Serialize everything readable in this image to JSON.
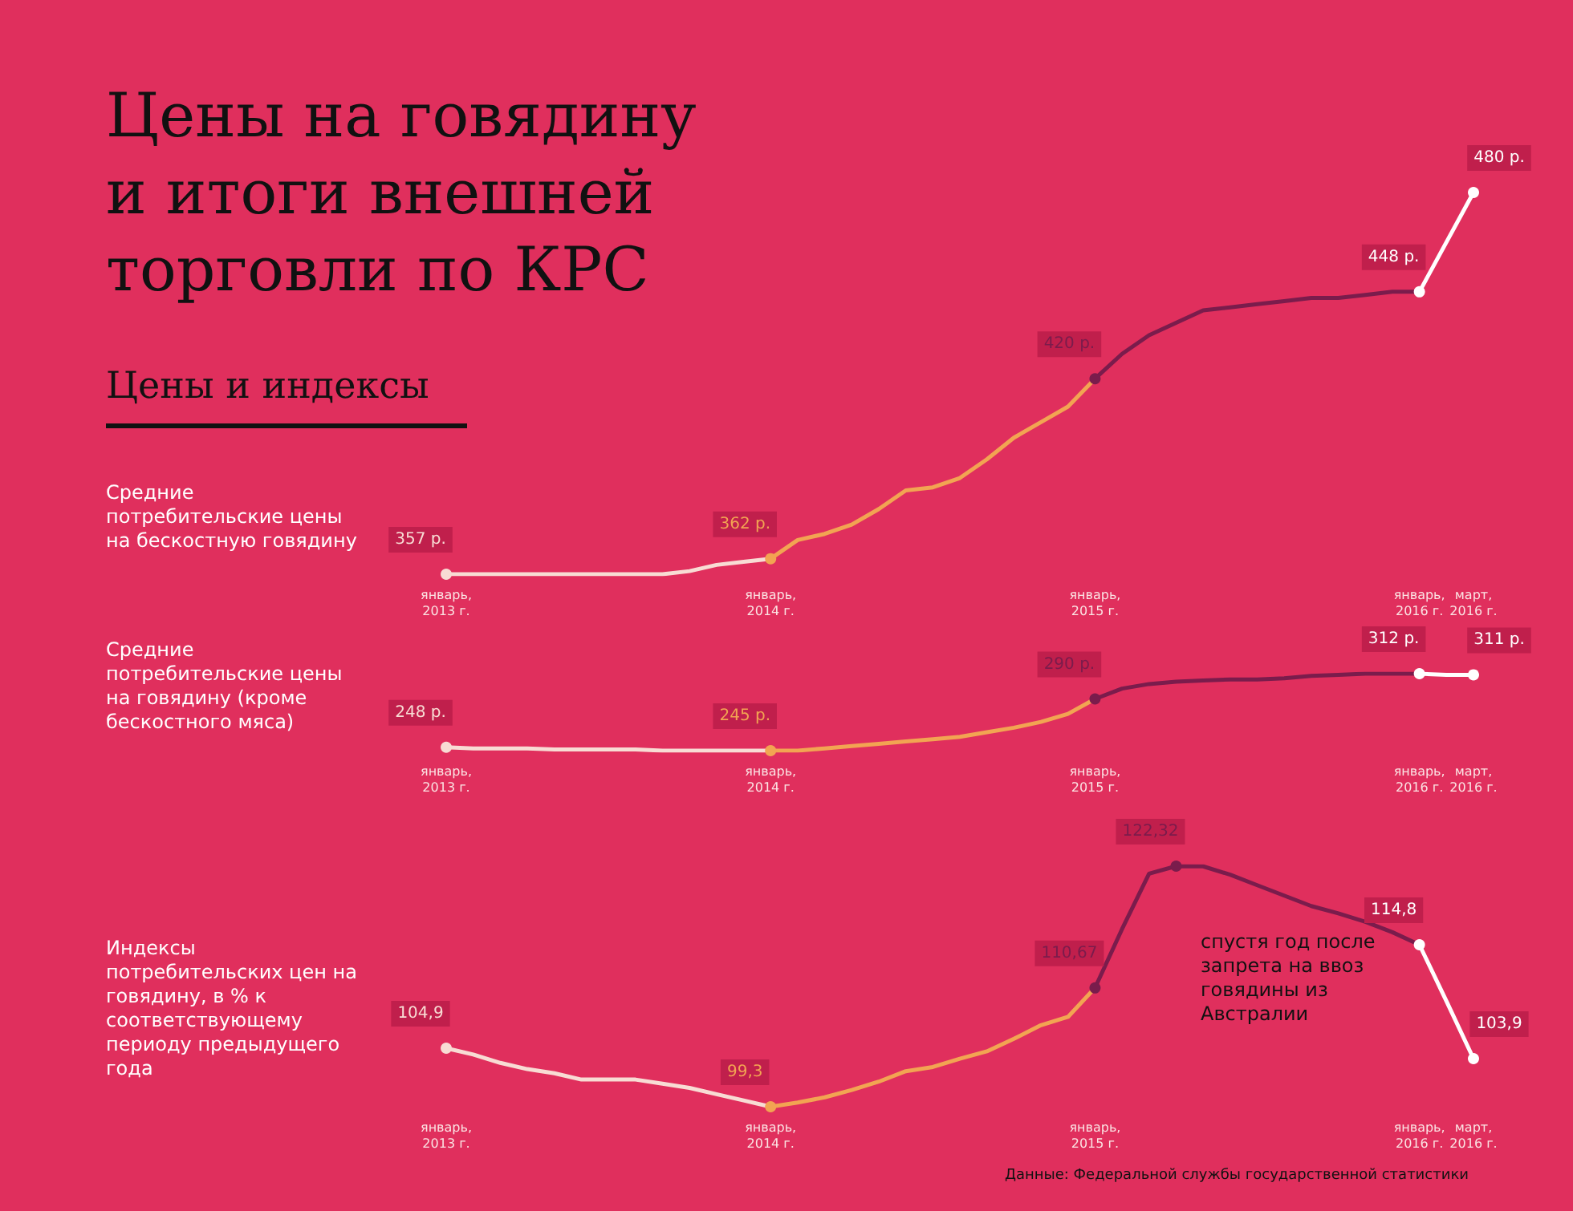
{
  "chart_data": [
    {
      "type": "line",
      "title": "Цены на говядину и итоги внешней торговли по КРС",
      "subtitle": "Цены и индексы",
      "ylabel": "Средние потребительские цены на бескостную говядину",
      "tick_labels": "x",
      "categories": [
        "январь, 2013 г.",
        null,
        null,
        null,
        null,
        null,
        null,
        null,
        null,
        null,
        null,
        null,
        "январь, 2014 г.",
        null,
        null,
        null,
        null,
        null,
        null,
        null,
        null,
        null,
        null,
        null,
        "январь, 2015 г.",
        null,
        null,
        null,
        null,
        null,
        null,
        null,
        null,
        null,
        null,
        null,
        "январь, 2016 г.",
        null,
        "март, 2016 г."
      ],
      "series": [
        {
          "color": "#f8dcd4",
          "values": [
            357,
            357,
            357,
            357,
            357,
            357,
            357,
            357,
            357,
            358,
            360,
            361,
            362,
            null,
            null,
            null,
            null,
            null,
            null,
            null,
            null,
            null,
            null,
            null,
            null,
            null,
            null,
            null,
            null,
            null,
            null,
            null,
            null,
            null,
            null,
            null,
            null,
            null,
            null
          ],
          "value_labels": [
            "357 р.",
            null,
            null,
            null,
            null,
            null,
            null,
            null,
            null,
            null,
            null,
            null,
            null,
            null,
            null,
            null,
            null,
            null,
            null,
            null,
            null,
            null,
            null,
            null,
            null,
            null,
            null,
            null,
            null,
            null,
            null,
            null,
            null,
            null,
            null,
            null,
            null,
            null,
            null
          ]
        },
        {
          "color": "#f2a452",
          "values": [
            null,
            null,
            null,
            null,
            null,
            null,
            null,
            null,
            null,
            null,
            null,
            null,
            362,
            368,
            370,
            373,
            378,
            384,
            385,
            388,
            394,
            401,
            406,
            411,
            420,
            null,
            null,
            null,
            null,
            null,
            null,
            null,
            null,
            null,
            null,
            null,
            null,
            null,
            null
          ],
          "value_labels": [
            null,
            null,
            null,
            null,
            null,
            null,
            null,
            null,
            null,
            null,
            null,
            null,
            "362 р.",
            null,
            null,
            null,
            null,
            null,
            null,
            null,
            null,
            null,
            null,
            null,
            null,
            null,
            null,
            null,
            null,
            null,
            null,
            null,
            null,
            null,
            null,
            null,
            null,
            null,
            null
          ]
        },
        {
          "color": "#7a1c4c",
          "values": [
            null,
            null,
            null,
            null,
            null,
            null,
            null,
            null,
            null,
            null,
            null,
            null,
            null,
            null,
            null,
            null,
            null,
            null,
            null,
            null,
            null,
            null,
            null,
            null,
            420,
            428,
            434,
            438,
            442,
            443,
            444,
            445,
            446,
            446,
            447,
            448,
            448,
            null,
            null
          ],
          "value_labels": [
            null,
            null,
            null,
            null,
            null,
            null,
            null,
            null,
            null,
            null,
            null,
            null,
            null,
            null,
            null,
            null,
            null,
            null,
            null,
            null,
            null,
            null,
            null,
            null,
            "420 р.",
            null,
            null,
            null,
            null,
            null,
            null,
            null,
            null,
            null,
            null,
            null,
            null,
            null,
            null
          ]
        },
        {
          "color": "#ffffff",
          "values": [
            null,
            null,
            null,
            null,
            null,
            null,
            null,
            null,
            null,
            null,
            null,
            null,
            null,
            null,
            null,
            null,
            null,
            null,
            null,
            null,
            null,
            null,
            null,
            null,
            null,
            null,
            null,
            null,
            null,
            null,
            null,
            null,
            null,
            null,
            null,
            null,
            448,
            464,
            480
          ],
          "value_labels": [
            null,
            null,
            null,
            null,
            null,
            null,
            null,
            null,
            null,
            null,
            null,
            null,
            null,
            null,
            null,
            null,
            null,
            null,
            null,
            null,
            null,
            null,
            null,
            null,
            null,
            null,
            null,
            null,
            null,
            null,
            null,
            null,
            null,
            null,
            null,
            null,
            "448 р.",
            null,
            "480 р."
          ]
        }
      ]
    },
    {
      "type": "line",
      "ylabel": "Средние потребительские цены на говядину (кроме бескостного мяса)",
      "tick_labels": "x",
      "categories": [
        "январь, 2013 г.",
        null,
        null,
        null,
        null,
        null,
        null,
        null,
        null,
        null,
        null,
        null,
        "январь, 2014 г.",
        null,
        null,
        null,
        null,
        null,
        null,
        null,
        null,
        null,
        null,
        null,
        "январь, 2015 г.",
        null,
        null,
        null,
        null,
        null,
        null,
        null,
        null,
        null,
        null,
        null,
        "январь, 2016 г.",
        null,
        "март, 2016 г."
      ],
      "series": [
        {
          "color": "#f8dcd4",
          "values": [
            248,
            247,
            247,
            247,
            246,
            246,
            246,
            246,
            245,
            245,
            245,
            245,
            245,
            null,
            null,
            null,
            null,
            null,
            null,
            null,
            null,
            null,
            null,
            null,
            null,
            null,
            null,
            null,
            null,
            null,
            null,
            null,
            null,
            null,
            null,
            null,
            null,
            null,
            null
          ],
          "value_labels": [
            "248 р.",
            null,
            null,
            null,
            null,
            null,
            null,
            null,
            null,
            null,
            null,
            null,
            null,
            null,
            null,
            null,
            null,
            null,
            null,
            null,
            null,
            null,
            null,
            null,
            null,
            null,
            null,
            null,
            null,
            null,
            null,
            null,
            null,
            null,
            null,
            null,
            null,
            null,
            null
          ]
        },
        {
          "color": "#f2a452",
          "values": [
            null,
            null,
            null,
            null,
            null,
            null,
            null,
            null,
            null,
            null,
            null,
            null,
            245,
            245,
            247,
            249,
            251,
            253,
            255,
            257,
            261,
            265,
            270,
            277,
            290,
            null,
            null,
            null,
            null,
            null,
            null,
            null,
            null,
            null,
            null,
            null,
            null,
            null,
            null
          ],
          "value_labels": [
            null,
            null,
            null,
            null,
            null,
            null,
            null,
            null,
            null,
            null,
            null,
            null,
            "245 р.",
            null,
            null,
            null,
            null,
            null,
            null,
            null,
            null,
            null,
            null,
            null,
            null,
            null,
            null,
            null,
            null,
            null,
            null,
            null,
            null,
            null,
            null,
            null,
            null,
            null,
            null
          ]
        },
        {
          "color": "#7a1c4c",
          "values": [
            null,
            null,
            null,
            null,
            null,
            null,
            null,
            null,
            null,
            null,
            null,
            null,
            null,
            null,
            null,
            null,
            null,
            null,
            null,
            null,
            null,
            null,
            null,
            null,
            290,
            299,
            303,
            305,
            306,
            307,
            307,
            308,
            310,
            311,
            312,
            312,
            312,
            null,
            null
          ],
          "value_labels": [
            null,
            null,
            null,
            null,
            null,
            null,
            null,
            null,
            null,
            null,
            null,
            null,
            null,
            null,
            null,
            null,
            null,
            null,
            null,
            null,
            null,
            null,
            null,
            null,
            "290 р.",
            null,
            null,
            null,
            null,
            null,
            null,
            null,
            null,
            null,
            null,
            null,
            null,
            null,
            null
          ]
        },
        {
          "color": "#ffffff",
          "values": [
            null,
            null,
            null,
            null,
            null,
            null,
            null,
            null,
            null,
            null,
            null,
            null,
            null,
            null,
            null,
            null,
            null,
            null,
            null,
            null,
            null,
            null,
            null,
            null,
            null,
            null,
            null,
            null,
            null,
            null,
            null,
            null,
            null,
            null,
            null,
            null,
            312,
            311,
            311
          ],
          "value_labels": [
            null,
            null,
            null,
            null,
            null,
            null,
            null,
            null,
            null,
            null,
            null,
            null,
            null,
            null,
            null,
            null,
            null,
            null,
            null,
            null,
            null,
            null,
            null,
            null,
            null,
            null,
            null,
            null,
            null,
            null,
            null,
            null,
            null,
            null,
            null,
            null,
            "312 р.",
            null,
            "311 р."
          ]
        }
      ]
    },
    {
      "type": "line",
      "ylabel": "Индексы потребительских цен на говядину, в % к соответствующему периоду предыдущего года",
      "tick_labels": "x",
      "annotations": [
        "спустя год после запрета на ввоз говядины из Австралии",
        "Данные: Федеральной службы государственной статистики"
      ],
      "categories": [
        "январь, 2013 г.",
        null,
        null,
        null,
        null,
        null,
        null,
        null,
        null,
        null,
        null,
        null,
        "январь, 2014 г.",
        null,
        null,
        null,
        null,
        null,
        null,
        null,
        null,
        null,
        null,
        null,
        "январь, 2015 г.",
        null,
        null,
        null,
        null,
        null,
        null,
        null,
        null,
        null,
        null,
        null,
        "январь, 2016 г.",
        null,
        "март, 2016 г."
      ],
      "series": [
        {
          "color": "#f8dcd4",
          "values": [
            104.9,
            104.3,
            103.5,
            102.9,
            102.5,
            101.9,
            101.9,
            101.9,
            101.5,
            101.1,
            100.5,
            99.9,
            99.3,
            null,
            null,
            null,
            null,
            null,
            null,
            null,
            null,
            null,
            null,
            null,
            null,
            null,
            null,
            null,
            null,
            null,
            null,
            null,
            null,
            null,
            null,
            null,
            null,
            null,
            null
          ],
          "value_labels": [
            "104,9",
            null,
            null,
            null,
            null,
            null,
            null,
            null,
            null,
            null,
            null,
            null,
            null,
            null,
            null,
            null,
            null,
            null,
            null,
            null,
            null,
            null,
            null,
            null,
            null,
            null,
            null,
            null,
            null,
            null,
            null,
            null,
            null,
            null,
            null,
            null,
            null,
            null,
            null
          ]
        },
        {
          "color": "#f2a452",
          "values": [
            null,
            null,
            null,
            null,
            null,
            null,
            null,
            null,
            null,
            null,
            null,
            null,
            99.3,
            99.7,
            100.2,
            100.9,
            101.7,
            102.7,
            103.1,
            103.9,
            104.6,
            105.8,
            107.1,
            107.9,
            110.67,
            null,
            null,
            null,
            null,
            null,
            null,
            null,
            null,
            null,
            null,
            null,
            null,
            null,
            null
          ],
          "value_labels": [
            null,
            null,
            null,
            null,
            null,
            null,
            null,
            null,
            null,
            null,
            null,
            null,
            "99,3",
            null,
            null,
            null,
            null,
            null,
            null,
            null,
            null,
            null,
            null,
            null,
            null,
            null,
            null,
            null,
            null,
            null,
            null,
            null,
            null,
            null,
            null,
            null,
            null,
            null,
            null
          ]
        },
        {
          "color": "#7a1c4c",
          "values": [
            null,
            null,
            null,
            null,
            null,
            null,
            null,
            null,
            null,
            null,
            null,
            null,
            null,
            null,
            null,
            null,
            null,
            null,
            null,
            null,
            null,
            null,
            null,
            null,
            110.67,
            116.3,
            121.6,
            122.32,
            122.3,
            121.5,
            120.5,
            119.5,
            118.5,
            117.8,
            117,
            116,
            114.8,
            null,
            null
          ],
          "value_labels": [
            null,
            null,
            null,
            null,
            null,
            null,
            null,
            null,
            null,
            null,
            null,
            null,
            null,
            null,
            null,
            null,
            null,
            null,
            null,
            null,
            null,
            null,
            null,
            null,
            "110,67",
            null,
            null,
            "122,32",
            null,
            null,
            null,
            null,
            null,
            null,
            null,
            null,
            null,
            null,
            null
          ]
        },
        {
          "color": "#ffffff",
          "values": [
            null,
            null,
            null,
            null,
            null,
            null,
            null,
            null,
            null,
            null,
            null,
            null,
            null,
            null,
            null,
            null,
            null,
            null,
            null,
            null,
            null,
            null,
            null,
            null,
            null,
            null,
            null,
            null,
            null,
            null,
            null,
            null,
            null,
            null,
            null,
            null,
            114.8,
            109.4,
            103.9
          ],
          "value_labels": [
            null,
            null,
            null,
            null,
            null,
            null,
            null,
            null,
            null,
            null,
            null,
            null,
            null,
            null,
            null,
            null,
            null,
            null,
            null,
            null,
            null,
            null,
            null,
            null,
            null,
            null,
            null,
            null,
            null,
            null,
            null,
            null,
            null,
            null,
            null,
            null,
            "114,8",
            null,
            "103,9"
          ]
        }
      ]
    }
  ]
}
